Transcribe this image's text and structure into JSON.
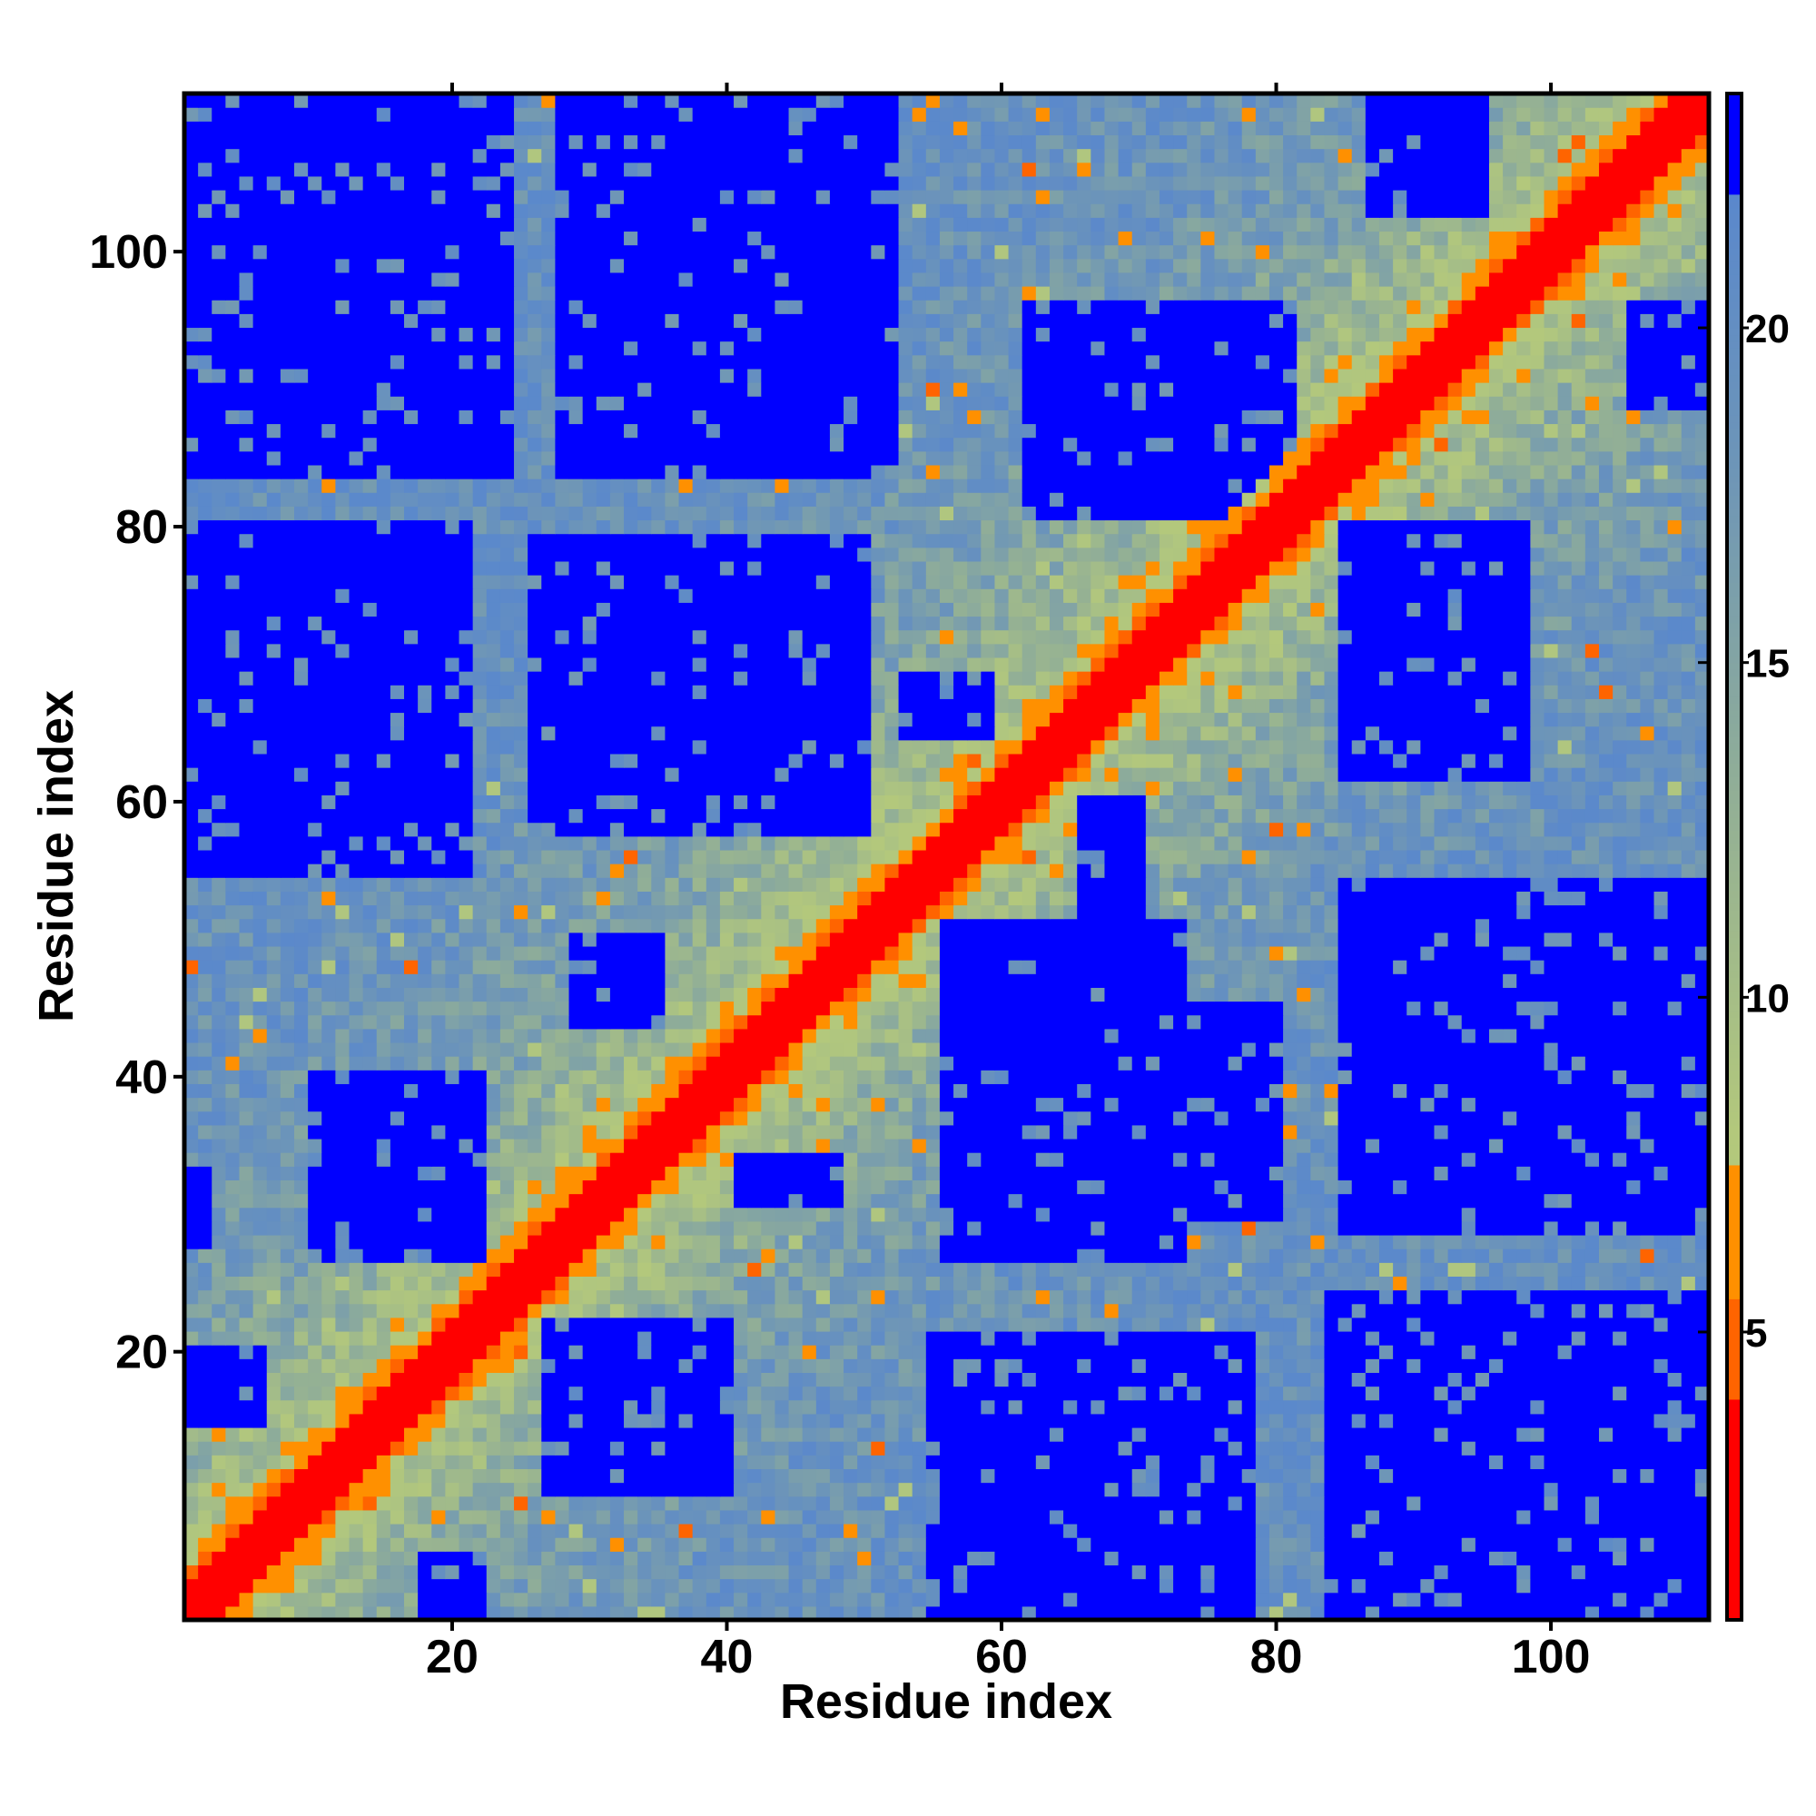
{
  "chart_data": {
    "type": "heatmap",
    "title": "",
    "xlabel": "Residue index",
    "ylabel": "Residue index",
    "n_residues": 111,
    "xlim": [
      0.5,
      111.5
    ],
    "ylim": [
      0.5,
      111.5
    ],
    "xticks": [
      20,
      40,
      60,
      80,
      100
    ],
    "yticks": [
      20,
      40,
      60,
      80,
      100
    ],
    "colorbar": {
      "range": [
        0.7,
        23.5
      ],
      "ticks": [
        5,
        10,
        15,
        20
      ],
      "placement": "right"
    },
    "color_scale": [
      {
        "max": 4,
        "color": "#ff0000"
      },
      {
        "max": 5.5,
        "color": "#ff6400"
      },
      {
        "max": 7.5,
        "color": "#ff9000"
      },
      {
        "max": 8,
        "color": "#b3c87c"
      },
      {
        "max": 13,
        "color": "#92af96"
      },
      {
        "max": 18,
        "color": "#6d95b8"
      },
      {
        "max": 22,
        "color": "#5a88cc"
      },
      {
        "max": 99,
        "color": "#0000ff"
      }
    ],
    "diagonal_profile": {
      "d0": 1.5,
      "d1": 3.4,
      "d2": 3.8,
      "d3": 5.5,
      "d4": 7.0,
      "far_plateau": 20
    },
    "far_regions_x0_x1_y0_y1": [
      [
        18,
        22,
        1,
        5
      ],
      [
        27,
        40,
        10,
        22
      ],
      [
        55,
        78,
        1,
        21
      ],
      [
        84,
        111,
        1,
        24
      ],
      [
        56,
        73,
        27,
        51
      ],
      [
        74,
        80,
        30,
        45
      ],
      [
        85,
        111,
        29,
        54
      ],
      [
        66,
        70,
        52,
        60
      ],
      [
        41,
        48,
        31,
        34
      ],
      [
        29,
        35,
        44,
        50
      ],
      [
        1,
        24,
        84,
        111
      ],
      [
        28,
        52,
        84,
        111
      ],
      [
        1,
        21,
        55,
        80
      ],
      [
        26,
        50,
        58,
        79
      ],
      [
        10,
        22,
        27,
        40
      ],
      [
        1,
        6,
        15,
        20
      ],
      [
        1,
        2,
        28,
        33
      ],
      [
        62,
        81,
        81,
        96
      ],
      [
        87,
        95,
        103,
        111
      ],
      [
        85,
        98,
        62,
        80
      ],
      [
        106,
        111,
        89,
        96
      ],
      [
        53,
        59,
        65,
        69
      ]
    ]
  }
}
